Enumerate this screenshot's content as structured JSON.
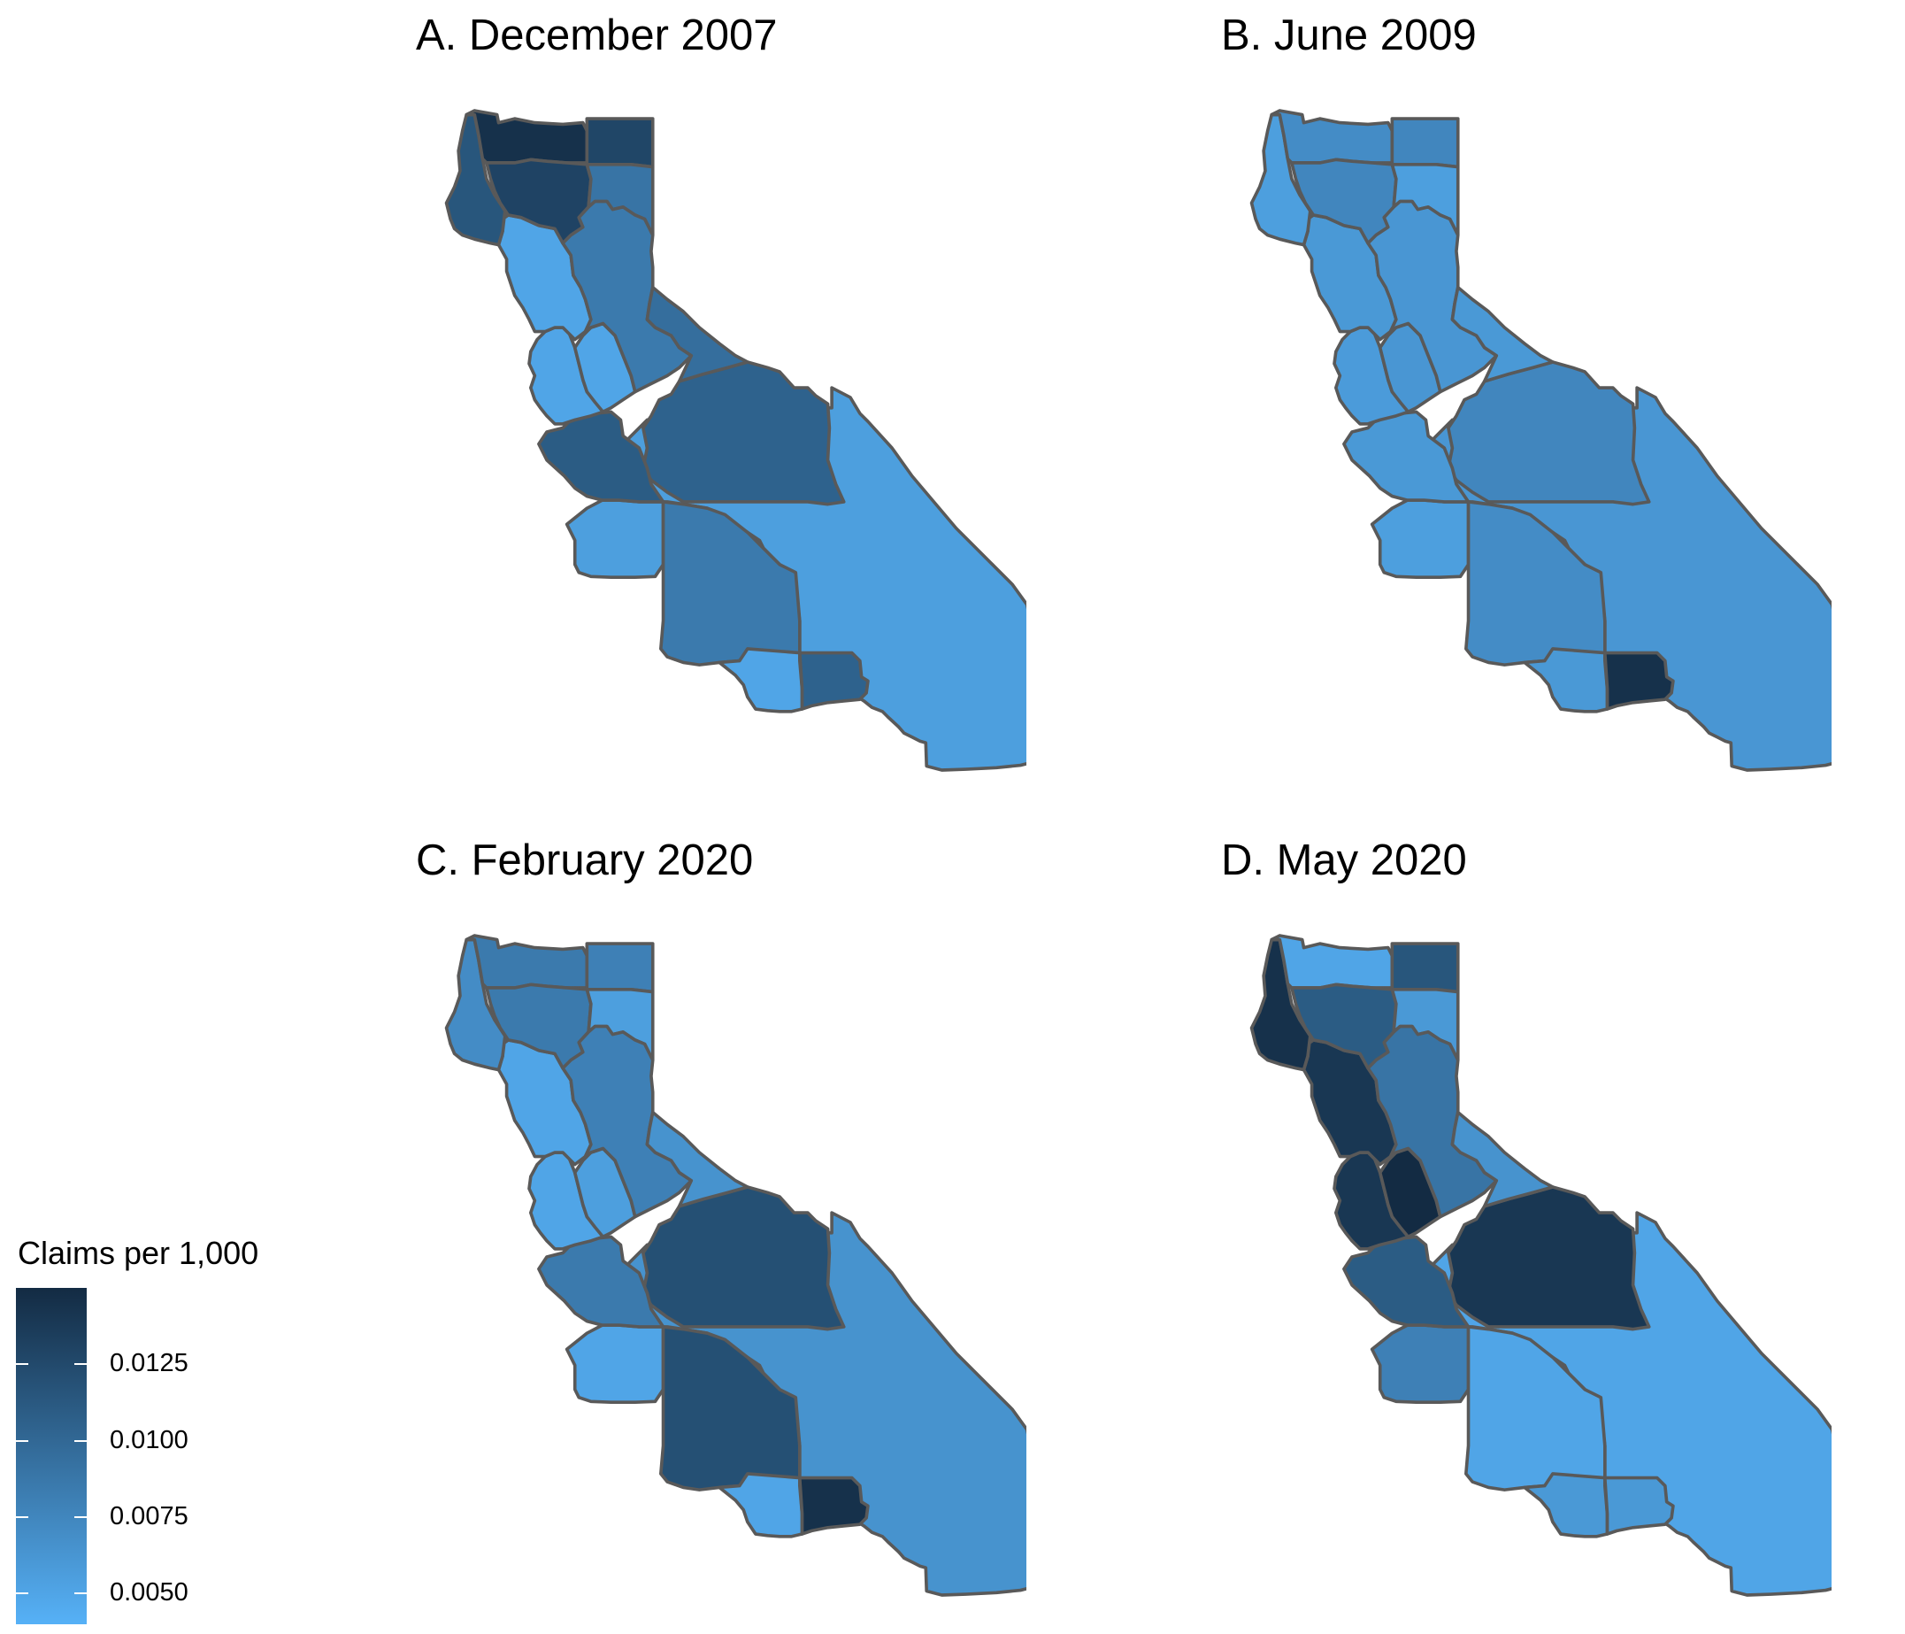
{
  "panels": [
    {
      "title": "A. December 2007",
      "region_values": {
        "north_coast_a": 0.0115,
        "north_top": 0.0145,
        "modoc": 0.0128,
        "lassen": 0.009,
        "shasta_trinity": 0.013,
        "humboldt_mendo": 0.005,
        "sac_valley": 0.0085,
        "sierra_east": 0.0095,
        "bay_area": 0.005,
        "inner_bay": 0.005,
        "san_joaquin": 0.0105,
        "central_coast": 0.011,
        "kern": 0.0085,
        "sb_ventura": 0.0055,
        "desert_south": 0.0055,
        "san_diego": 0.005,
        "imperial": 0.0105
      }
    },
    {
      "title": "B. June 2009",
      "region_values": {
        "north_coast_a": 0.0055,
        "north_top": 0.007,
        "modoc": 0.0075,
        "lassen": 0.0055,
        "shasta_trinity": 0.0075,
        "humboldt_mendo": 0.006,
        "sac_valley": 0.0062,
        "sierra_east": 0.006,
        "bay_area": 0.0058,
        "inner_bay": 0.0062,
        "san_joaquin": 0.0075,
        "central_coast": 0.006,
        "kern": 0.007,
        "sb_ventura": 0.0055,
        "desert_south": 0.0062,
        "san_diego": 0.006,
        "imperial": 0.0145
      }
    },
    {
      "title": "C. February 2020",
      "region_values": {
        "north_coast_a": 0.007,
        "north_top": 0.0085,
        "modoc": 0.008,
        "lassen": 0.0055,
        "shasta_trinity": 0.0085,
        "humboldt_mendo": 0.005,
        "sac_valley": 0.008,
        "sierra_east": 0.0065,
        "bay_area": 0.005,
        "inner_bay": 0.0055,
        "san_joaquin": 0.012,
        "central_coast": 0.0085,
        "kern": 0.012,
        "sb_ventura": 0.005,
        "desert_south": 0.0065,
        "san_diego": 0.005,
        "imperial": 0.0145
      }
    },
    {
      "title": "D. May 2020",
      "region_values": {
        "north_coast_a": 0.0145,
        "north_top": 0.005,
        "modoc": 0.0115,
        "lassen": 0.006,
        "shasta_trinity": 0.011,
        "humboldt_mendo": 0.014,
        "sac_valley": 0.009,
        "sierra_east": 0.0065,
        "bay_area": 0.014,
        "inner_bay": 0.015,
        "san_joaquin": 0.014,
        "central_coast": 0.011,
        "kern": 0.005,
        "sb_ventura": 0.008,
        "desert_south": 0.005,
        "san_diego": 0.006,
        "imperial": 0.006
      }
    }
  ],
  "legend": {
    "title": "Claims per 1,000",
    "min": 0.004,
    "max": 0.015,
    "color_low": "#56b1f7",
    "color_high": "#132b43",
    "ticks": [
      "0.0125",
      "0.0100",
      "0.0075",
      "0.0050"
    ],
    "tick_values": [
      0.0125,
      0.01,
      0.0075,
      0.005
    ]
  }
}
